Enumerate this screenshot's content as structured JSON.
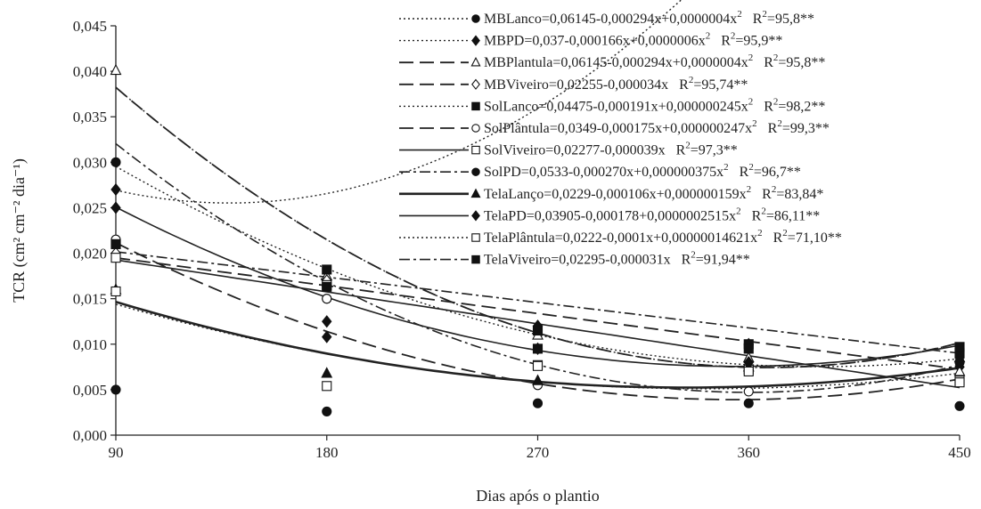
{
  "chart_data": {
    "type": "scatter",
    "xlabel": "Dias após o plantio",
    "ylabel": "TCR (cm² cm⁻² dia⁻¹)",
    "x": [
      90,
      180,
      270,
      360,
      450
    ],
    "x_ticks": [
      "90",
      "180",
      "270",
      "360",
      "450"
    ],
    "y_ticks": [
      "0,000",
      "0,005",
      "0,010",
      "0,015",
      "0,020",
      "0,025",
      "0,030",
      "0,035",
      "0,040",
      "0,045"
    ],
    "xlim": [
      90,
      450
    ],
    "ylim": [
      0,
      0.045
    ],
    "grid": false,
    "legend_position": "top-right",
    "series": [
      {
        "name": "MBLanco",
        "equation": "MBLanco=0,06145-0,000294x+0,0000004x",
        "r2": "R=95,8**",
        "marker": "dot-filled",
        "line": "dotted",
        "fit": [
          0.06145,
          -0.000294,
          4e-07
        ],
        "values": [
          0.03,
          0.015,
          0.0115,
          0.01,
          0.008
        ]
      },
      {
        "name": "MBPD",
        "equation": "MBPD=0,037-0,000166x+0,0000006x",
        "r2": "R=95,9**",
        "marker": "diamond-filled",
        "line": "dotted",
        "fit": [
          0.037,
          -0.000166,
          6e-07
        ],
        "values": [
          0.027,
          0.0125,
          0.0095,
          0.008,
          0.0075
        ]
      },
      {
        "name": "MBPlantula",
        "equation": "MBPlantula=0,06145-0,000294x+0,0000004x",
        "r2": "R=95,8**",
        "marker": "triangle-open",
        "line": "longdash",
        "fit": [
          0.06145,
          -0.000294,
          4e-07
        ],
        "values": [
          0.0401,
          0.0175,
          0.011,
          0.0085,
          0.007
        ]
      },
      {
        "name": "MBViveiro",
        "equation": "MBViveiro=0,02255-0,000034x",
        "r2": "R=95,74**",
        "marker": "diamond-open",
        "line": "longdash",
        "fit": [
          0.02255,
          -3.4e-05,
          0
        ],
        "values": [
          0.02,
          0.017,
          0.012,
          0.01,
          0.0085
        ]
      },
      {
        "name": "SolLanco",
        "equation": "SolLanco=0,04475-0,000191x+0,000000245x",
        "r2": "R=98,2**",
        "marker": "square-filled",
        "line": "dotted",
        "fit": [
          0.04475,
          -0.000191,
          2.45e-07
        ],
        "values": [
          0.021,
          0.0182,
          0.0115,
          0.01,
          0.009
        ]
      },
      {
        "name": "SolPlântula",
        "equation": "SolPlântula=0,0349-0,000175x+0,000000247x",
        "r2": "R=99,3**",
        "marker": "circle-open",
        "line": "longdash",
        "fit": [
          0.0349,
          -0.000175,
          2.47e-07
        ],
        "values": [
          0.0215,
          0.015,
          0.0055,
          0.0048,
          0.006
        ]
      },
      {
        "name": "SolViveiro",
        "equation": "SolViveiro=0,02277-0,000039x",
        "r2": "R=97,3**",
        "marker": "square-open",
        "line": "solid",
        "fit": [
          0.02277,
          -3.9e-05,
          0
        ],
        "values": [
          0.0195,
          0.0165,
          0.0077,
          0.0072,
          0.006
        ]
      },
      {
        "name": "SolPD",
        "equation": "SolPD=0,0533-0,000270x+0,000000375x",
        "r2": "R=96,7**",
        "marker": "dot-filled",
        "line": "dashdot",
        "fit": [
          0.0533,
          -0.00027,
          3.75e-07
        ],
        "values": [
          0.005,
          0.0026,
          0.0035,
          0.0035,
          0.0032
        ]
      },
      {
        "name": "TelaLanço",
        "equation": "TelaLanço=0,0229-0,000106x+0,000000159x",
        "r2": "R=83,84*",
        "marker": "triangle-filled",
        "line": "solid-thick",
        "fit": [
          0.0229,
          -0.000106,
          1.59e-07
        ],
        "values": [
          0.016,
          0.0068,
          0.006,
          0.0075,
          0.0085
        ]
      },
      {
        "name": "TelaPD",
        "equation": "TelaPD=0,03905-0,000178+0,0000002515x",
        "r2": "R=86,11**",
        "marker": "diamond-filled",
        "line": "solid",
        "fit": [
          0.03905,
          -0.000178,
          2.515e-07
        ],
        "values": [
          0.025,
          0.0108,
          0.012,
          0.008,
          0.008
        ]
      },
      {
        "name": "TelaPlântula",
        "equation": "TelaPlântula=0,0222-0,0001x+0,00000014621x",
        "r2": "R=71,10**",
        "marker": "square-open",
        "line": "dotted",
        "fit": [
          0.0222,
          -0.0001,
          1.4621e-07
        ],
        "values": [
          0.0158,
          0.0054,
          0.0076,
          0.007,
          0.0058
        ]
      },
      {
        "name": "TelaViveiro",
        "equation": "TelaViveiro=0,02295-0,000031x",
        "r2": "R=91,94**",
        "marker": "square-filled",
        "line": "dashdot",
        "fit": [
          0.02295,
          -3.1e-05,
          0
        ],
        "values": [
          0.021,
          0.0163,
          0.0095,
          0.0095,
          0.0097
        ]
      }
    ]
  }
}
